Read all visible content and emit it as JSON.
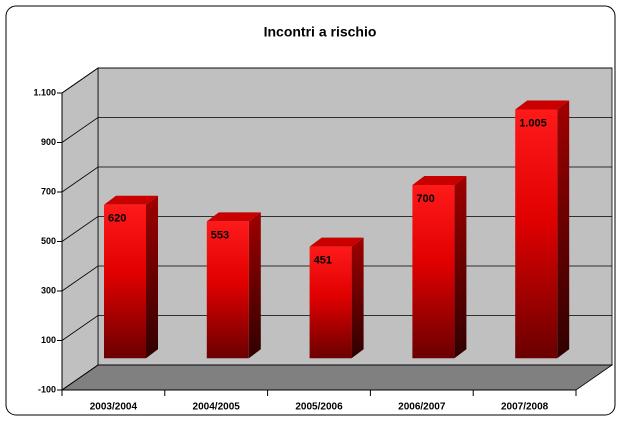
{
  "chart_data": {
    "type": "bar",
    "title": "Incontri a rischio",
    "categories": [
      "2003/2004",
      "2004/2005",
      "2005/2006",
      "2006/2007",
      "2007/2008"
    ],
    "values": [
      620,
      553,
      451,
      700,
      1005
    ],
    "value_labels": [
      "620",
      "553",
      "451",
      "700",
      "1.005"
    ],
    "color": "#ff0000",
    "ylim": [
      -100,
      1100
    ],
    "yticks": [
      -100,
      100,
      300,
      500,
      700,
      900,
      {
        "value": 1100,
        "label": "1.100"
      }
    ],
    "grid": true
  }
}
